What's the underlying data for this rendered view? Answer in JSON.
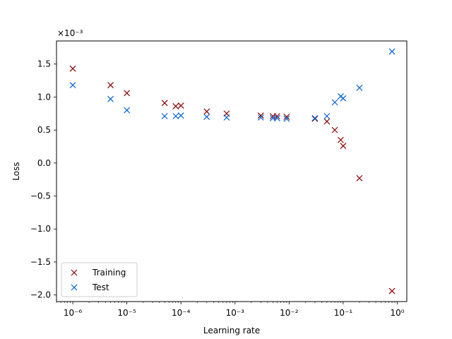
{
  "chart_data": {
    "type": "scatter",
    "title": "",
    "xlabel": "Learning rate",
    "ylabel": "Loss",
    "xscale": "log",
    "xlim": [
      5e-07,
      1.5
    ],
    "ylim": [
      -2.1,
      1.85
    ],
    "y_multiplier_label": "×10⁻³",
    "x_ticks": [
      {
        "value": 1e-06,
        "label": "10⁻⁶"
      },
      {
        "value": 1e-05,
        "label": "10⁻⁵"
      },
      {
        "value": 0.0001,
        "label": "10⁻⁴"
      },
      {
        "value": 0.001,
        "label": "10⁻³"
      },
      {
        "value": 0.01,
        "label": "10⁻²"
      },
      {
        "value": 0.1,
        "label": "10⁻¹"
      },
      {
        "value": 1,
        "label": "10⁰"
      }
    ],
    "y_ticks": [
      {
        "value": 1.5,
        "label": "1.5"
      },
      {
        "value": 1.0,
        "label": "1.0"
      },
      {
        "value": 0.5,
        "label": "0.5"
      },
      {
        "value": 0.0,
        "label": "0.0"
      },
      {
        "value": -0.5,
        "label": "−0.5"
      },
      {
        "value": -1.0,
        "label": "−1.0"
      },
      {
        "value": -1.5,
        "label": "−1.5"
      },
      {
        "value": -2.0,
        "label": "−2.0"
      }
    ],
    "grid": false,
    "legend_position": "lower-left",
    "series": [
      {
        "name": "Training",
        "color": "#8b0000",
        "marker": "x",
        "points": [
          [
            1e-06,
            1.43
          ],
          [
            5e-06,
            1.18
          ],
          [
            1e-05,
            1.06
          ],
          [
            5e-05,
            0.91
          ],
          [
            8e-05,
            0.86
          ],
          [
            0.0001,
            0.87
          ],
          [
            0.0003,
            0.78
          ],
          [
            0.0007,
            0.75
          ],
          [
            0.003,
            0.72
          ],
          [
            0.005,
            0.71
          ],
          [
            0.006,
            0.71
          ],
          [
            0.009,
            0.7
          ],
          [
            0.03,
            0.67
          ],
          [
            0.05,
            0.63
          ],
          [
            0.07,
            0.5
          ],
          [
            0.09,
            0.35
          ],
          [
            0.1,
            0.26
          ],
          [
            0.2,
            -0.23
          ],
          [
            0.8,
            -1.94
          ]
        ]
      },
      {
        "name": "Test",
        "color": "#0060dd",
        "marker": "x",
        "points": [
          [
            1e-06,
            1.18
          ],
          [
            5e-06,
            0.97
          ],
          [
            1e-05,
            0.8
          ],
          [
            5e-05,
            0.71
          ],
          [
            8e-05,
            0.71
          ],
          [
            0.0001,
            0.72
          ],
          [
            0.0003,
            0.7
          ],
          [
            0.0007,
            0.69
          ],
          [
            0.003,
            0.69
          ],
          [
            0.005,
            0.68
          ],
          [
            0.006,
            0.68
          ],
          [
            0.009,
            0.67
          ],
          [
            0.03,
            0.68
          ],
          [
            0.05,
            0.71
          ],
          [
            0.07,
            0.92
          ],
          [
            0.09,
            1.01
          ],
          [
            0.1,
            0.98
          ],
          [
            0.2,
            1.14
          ],
          [
            0.8,
            1.69
          ]
        ]
      }
    ]
  }
}
